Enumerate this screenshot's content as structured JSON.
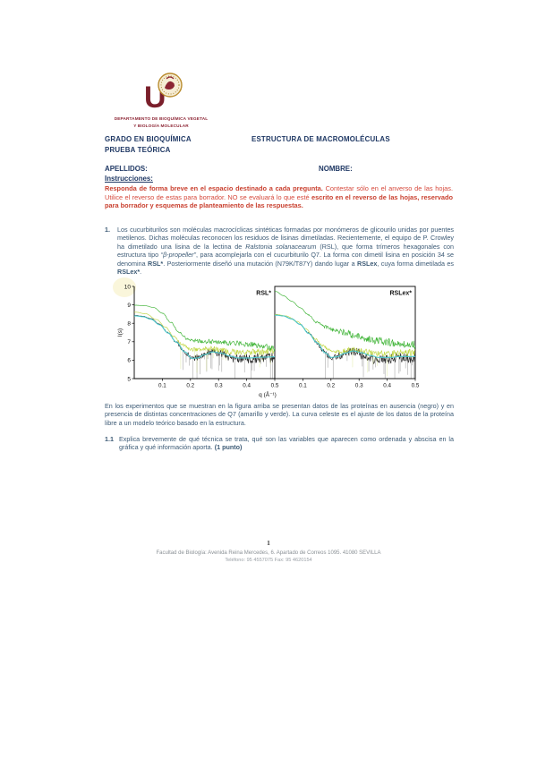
{
  "page": {
    "number": "1"
  },
  "logo": {
    "dept_line1": "DEPARTAMENTO DE BIOQUÍMICA VEGETAL",
    "dept_line2": "Y BIOLOGÍA MOLECULAR"
  },
  "header": {
    "program": "GRADO EN BIOQUÍMICA",
    "exam_type": "PRUEBA TEÓRICA",
    "course": "ESTRUCTURA DE MACROMOLÉCULAS"
  },
  "fields": {
    "apellidos": "APELLIDOS:",
    "nombre": "NOMBRE:"
  },
  "instructions": {
    "title": "Instrucciones:",
    "runs": [
      {
        "t": "Responda de forma breve en el espacio destinado a cada pregunta.",
        "b": true
      },
      {
        "t": " Contestar sólo en el anverso de las hojas. Utilice el reverso de estas para borrador. NO se evaluará lo que esté "
      },
      {
        "t": "escrito en el reverso de las hojas, reservado para borrador y esquemas de planteamiento de las respuestas.",
        "b": true
      }
    ]
  },
  "question1": {
    "number": "1.",
    "runs": [
      {
        "t": "Los cucurbiturilos son moléculas macrocíclicas sintéticas formadas por monómeros de glicourilo unidas por puentes metilenos. Dichas moléculas reconocen los residuos de lisinas dimetiladas. Recientemente, el equipo de P. Crowley ha dimetilado una lisina de la lectina de "
      },
      {
        "t": "Ralstonia solanacearum",
        "i": true
      },
      {
        "t": " (RSL), que forma trímeros hexagonales con estructura tipo "
      },
      {
        "t": "“β-propeller”",
        "i": true
      },
      {
        "t": ", para acomplejarla con el cucurbiturilo Q7. La forma con dimetil lisina en posición 34 se denomina "
      },
      {
        "t": "RSL*",
        "b": true
      },
      {
        "t": ". Posteriormente diseñó una mutación (N79K/T87Y) dando lugar a "
      },
      {
        "t": "RSLex",
        "b": true
      },
      {
        "t": ", cuya forma dimetilada es "
      },
      {
        "t": "RSLex*",
        "b": true
      },
      {
        "t": "."
      }
    ]
  },
  "caption": {
    "text": "En los experimentos que se muestran en la figura arriba se presentan datos de las proteínas en ausencia (negro) y en presencia de distintas concentraciones de Q7 (amarillo y verde). La curva celeste es el ajuste de los datos de la proteína libre a un modelo teórico basado en la estructura."
  },
  "question11": {
    "number": "1.1",
    "runs": [
      {
        "t": "Explica brevemente de qué técnica se trata, qué son las variables que aparecen como ordenada y abscisa en la gráfica y qué información aporta. "
      },
      {
        "t": "(1 punto)",
        "b": true
      }
    ]
  },
  "footer": {
    "line1": "Facultad de Biología: Avenida Reina Mercedes, 6. Apartado de Correos 1095. 41080 SEVILLA",
    "line2": "Teléfono: 95 4557075 Fax: 95 4620154"
  },
  "chart_data": {
    "type": "line",
    "title": "",
    "xlabel": "q (Å⁻¹)",
    "ylabel": "I(s)",
    "xlim": [
      0,
      0.5
    ],
    "ylim": [
      5,
      10
    ],
    "xticks": [
      0.1,
      0.2,
      0.3,
      0.4,
      0.5
    ],
    "yticks": [
      5,
      6,
      7,
      8,
      9,
      10
    ],
    "grid": false,
    "legend_position": "none",
    "colors": {
      "negro": "#1b1b1b",
      "amarillo": "#bcd437",
      "verde": "#2fae26",
      "celeste": "#4cc8cb"
    },
    "panels": [
      {
        "label": "RSL*",
        "series": [
          {
            "name": "proteina libre (negro)",
            "color": "#1b1b1b",
            "noise": 0.26,
            "spikes": 0.5,
            "points": [
              [
                0.005,
                8.42
              ],
              [
                0.03,
                8.38
              ],
              [
                0.06,
                8.25
              ],
              [
                0.09,
                7.95
              ],
              [
                0.12,
                7.5
              ],
              [
                0.15,
                7.0
              ],
              [
                0.17,
                6.6
              ],
              [
                0.19,
                6.3
              ],
              [
                0.21,
                6.08
              ],
              [
                0.235,
                6.2
              ],
              [
                0.265,
                6.42
              ],
              [
                0.295,
                6.42
              ],
              [
                0.325,
                6.25
              ],
              [
                0.355,
                6.1
              ],
              [
                0.39,
                6.08
              ],
              [
                0.43,
                6.1
              ],
              [
                0.47,
                6.12
              ],
              [
                0.5,
                6.12
              ]
            ]
          },
          {
            "name": "con Q7 (amarillo)",
            "color": "#bcd437",
            "noise": 0.17,
            "spikes": 0.2,
            "points": [
              [
                0.005,
                8.6
              ],
              [
                0.04,
                8.52
              ],
              [
                0.08,
                8.2
              ],
              [
                0.11,
                7.8
              ],
              [
                0.14,
                7.3
              ],
              [
                0.17,
                6.85
              ],
              [
                0.2,
                6.6
              ],
              [
                0.23,
                6.55
              ],
              [
                0.27,
                6.65
              ],
              [
                0.31,
                6.55
              ],
              [
                0.35,
                6.45
              ],
              [
                0.4,
                6.42
              ],
              [
                0.45,
                6.45
              ],
              [
                0.5,
                6.5
              ]
            ]
          },
          {
            "name": "con Q7 (verde)",
            "color": "#2fae26",
            "noise": 0.14,
            "spikes": 0,
            "points": [
              [
                0.005,
                8.98
              ],
              [
                0.04,
                8.95
              ],
              [
                0.07,
                8.85
              ],
              [
                0.1,
                8.55
              ],
              [
                0.13,
                8.05
              ],
              [
                0.16,
                7.5
              ],
              [
                0.19,
                7.15
              ],
              [
                0.22,
                7.05
              ],
              [
                0.26,
                7.02
              ],
              [
                0.3,
                6.98
              ],
              [
                0.35,
                6.92
              ],
              [
                0.4,
                6.88
              ],
              [
                0.45,
                6.8
              ],
              [
                0.5,
                6.62
              ]
            ]
          },
          {
            "name": "ajuste modelo (celeste)",
            "color": "#4cc8cb",
            "smooth": true,
            "points": [
              [
                0.005,
                8.4
              ],
              [
                0.03,
                8.36
              ],
              [
                0.06,
                8.22
              ],
              [
                0.09,
                7.92
              ],
              [
                0.12,
                7.48
              ],
              [
                0.15,
                6.98
              ],
              [
                0.18,
                6.45
              ],
              [
                0.205,
                6.1
              ],
              [
                0.225,
                6.12
              ],
              [
                0.25,
                6.3
              ],
              [
                0.28,
                6.45
              ],
              [
                0.31,
                6.38
              ],
              [
                0.34,
                6.22
              ],
              [
                0.37,
                6.12
              ],
              [
                0.41,
                6.12
              ],
              [
                0.45,
                6.16
              ],
              [
                0.5,
                6.18
              ]
            ]
          }
        ]
      },
      {
        "label": "RSLex*",
        "series": [
          {
            "name": "proteina libre (negro)",
            "color": "#1b1b1b",
            "noise": 0.27,
            "spikes": 0.5,
            "points": [
              [
                0.005,
                8.45
              ],
              [
                0.03,
                8.4
              ],
              [
                0.06,
                8.25
              ],
              [
                0.09,
                7.95
              ],
              [
                0.12,
                7.48
              ],
              [
                0.15,
                6.95
              ],
              [
                0.17,
                6.55
              ],
              [
                0.19,
                6.25
              ],
              [
                0.205,
                6.12
              ],
              [
                0.23,
                6.25
              ],
              [
                0.26,
                6.45
              ],
              [
                0.29,
                6.45
              ],
              [
                0.32,
                6.2
              ],
              [
                0.35,
                6.05
              ],
              [
                0.39,
                6.05
              ],
              [
                0.43,
                6.1
              ],
              [
                0.47,
                6.1
              ],
              [
                0.5,
                6.12
              ]
            ]
          },
          {
            "name": "con Q7 (amarillo)",
            "color": "#bcd437",
            "noise": 0.18,
            "spikes": 0.2,
            "points": [
              [
                0.005,
                8.48
              ],
              [
                0.04,
                8.4
              ],
              [
                0.08,
                8.1
              ],
              [
                0.11,
                7.7
              ],
              [
                0.14,
                7.2
              ],
              [
                0.17,
                6.8
              ],
              [
                0.2,
                6.5
              ],
              [
                0.23,
                6.45
              ],
              [
                0.27,
                6.6
              ],
              [
                0.31,
                6.5
              ],
              [
                0.35,
                6.38
              ],
              [
                0.4,
                6.35
              ],
              [
                0.45,
                6.38
              ],
              [
                0.5,
                6.42
              ]
            ]
          },
          {
            "name": "con Q7 (verde)",
            "color": "#2fae26",
            "noise": 0.21,
            "spikes": 0,
            "points": [
              [
                0.005,
                9.72
              ],
              [
                0.03,
                9.5
              ],
              [
                0.06,
                9.2
              ],
              [
                0.09,
                8.85
              ],
              [
                0.12,
                8.45
              ],
              [
                0.15,
                8.05
              ],
              [
                0.18,
                7.8
              ],
              [
                0.21,
                7.65
              ],
              [
                0.25,
                7.5
              ],
              [
                0.29,
                7.3
              ],
              [
                0.33,
                7.15
              ],
              [
                0.37,
                7.05
              ],
              [
                0.42,
                6.95
              ],
              [
                0.46,
                6.9
              ],
              [
                0.5,
                6.85
              ]
            ]
          },
          {
            "name": "ajuste modelo (celeste)",
            "color": "#4cc8cb",
            "smooth": true,
            "points": [
              [
                0.005,
                8.44
              ],
              [
                0.03,
                8.4
              ],
              [
                0.06,
                8.24
              ],
              [
                0.09,
                7.94
              ],
              [
                0.12,
                7.46
              ],
              [
                0.15,
                6.95
              ],
              [
                0.18,
                6.4
              ],
              [
                0.2,
                6.15
              ],
              [
                0.22,
                6.18
              ],
              [
                0.25,
                6.38
              ],
              [
                0.28,
                6.5
              ],
              [
                0.31,
                6.4
              ],
              [
                0.34,
                6.25
              ],
              [
                0.37,
                6.15
              ],
              [
                0.41,
                6.15
              ],
              [
                0.45,
                6.2
              ],
              [
                0.5,
                6.2
              ]
            ]
          }
        ]
      }
    ]
  }
}
